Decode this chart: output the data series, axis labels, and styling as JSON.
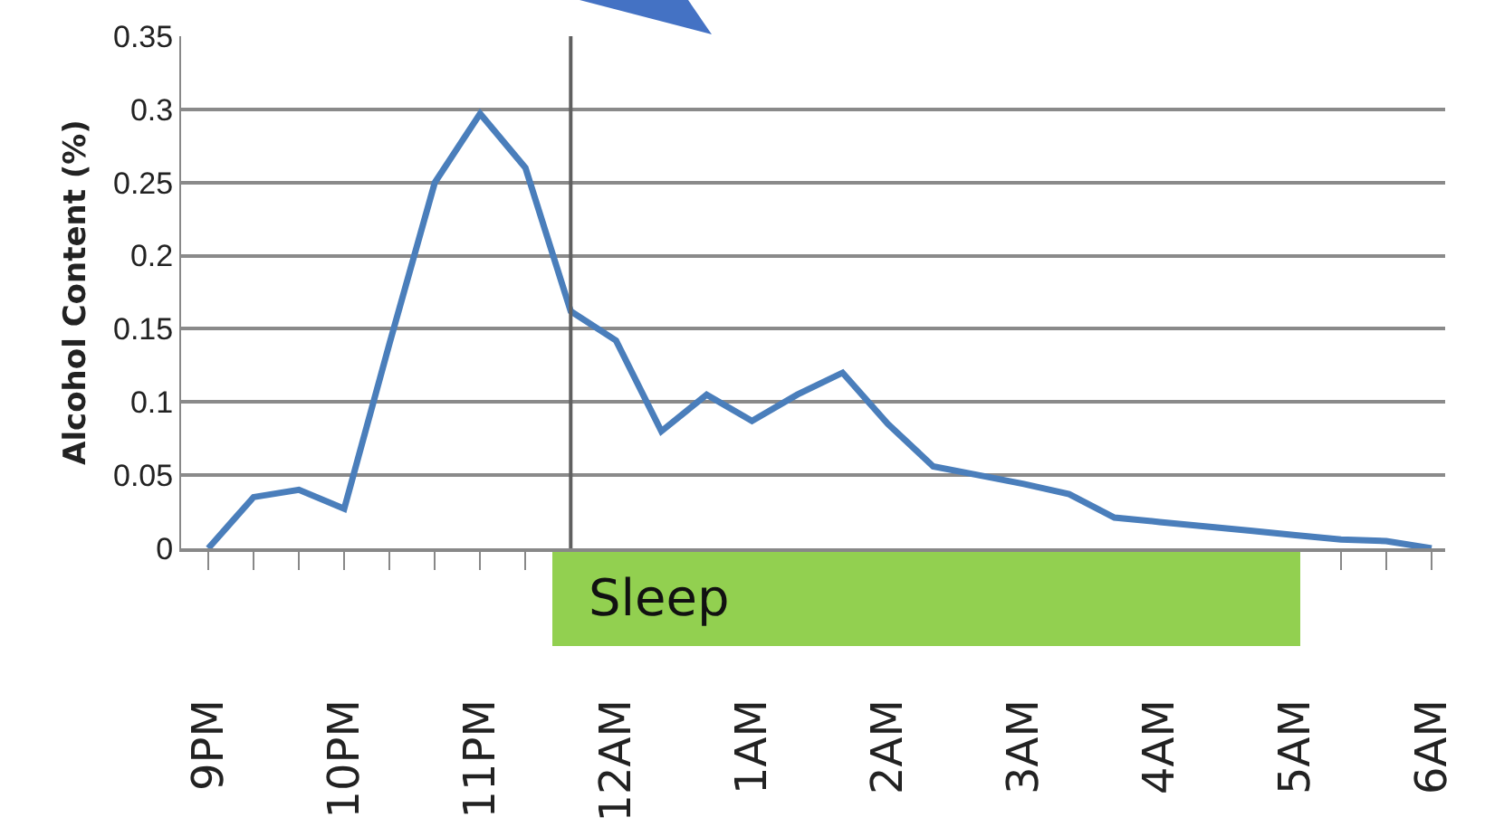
{
  "chart_data": {
    "type": "line",
    "ylabel": "Alcohol Content (%)",
    "categories": [
      "9PM",
      null,
      null,
      "10PM",
      null,
      null,
      "11PM",
      null,
      null,
      "12AM",
      null,
      null,
      "1AM",
      null,
      null,
      "2AM",
      null,
      null,
      "3AM",
      null,
      null,
      "4AM",
      null,
      null,
      "5AM",
      null,
      null,
      "6AM"
    ],
    "series": [
      {
        "color": "#4a7ebb",
        "values": [
          0,
          0.035,
          0.04,
          0.027,
          0.14,
          0.25,
          0.297,
          0.26,
          0.162,
          0.142,
          0.08,
          0.105,
          0.087,
          0.105,
          0.12,
          0.085,
          0.056,
          0.05,
          0.044,
          0.037,
          0.021,
          0.018,
          0.015,
          0.012,
          0.009,
          0.006,
          0.005,
          0
        ]
      }
    ],
    "ylim": [
      0,
      0.35
    ],
    "yticks": [
      0,
      0.05,
      0.1,
      0.15,
      0.2,
      0.25,
      0.3,
      0.35
    ],
    "grid": "y",
    "marker": "none",
    "line_style": "solid",
    "annotations": [
      "Sleep"
    ]
  }
}
